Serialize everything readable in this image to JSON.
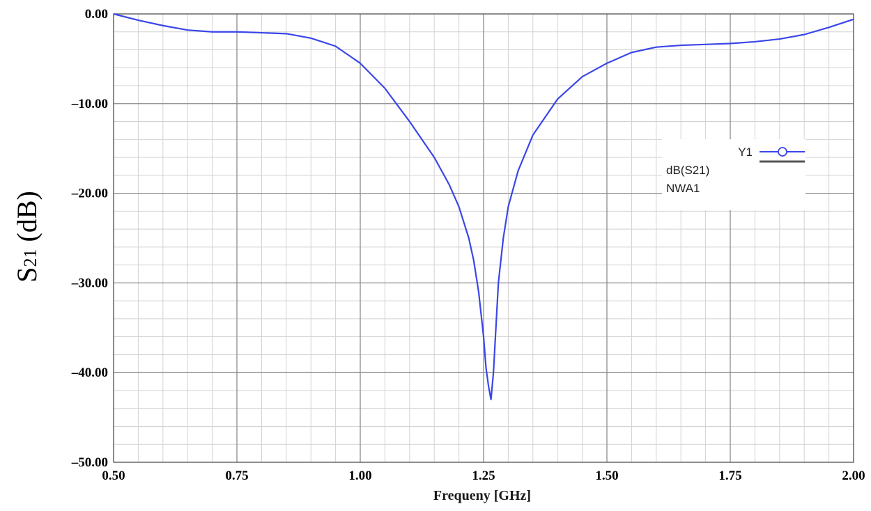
{
  "chart_data": {
    "type": "line",
    "title": "",
    "xlabel": "Frequeny [GHz]",
    "ylabel": {
      "main": "S",
      "sub": "21",
      "unit": " (dB)"
    },
    "xlim": [
      0.5,
      2.0
    ],
    "ylim": [
      -50,
      0
    ],
    "x_ticks": [
      0.5,
      0.75,
      1.0,
      1.25,
      1.5,
      1.75,
      2.0
    ],
    "x_tick_labels": [
      "0.50",
      "0.75",
      "1.00",
      "1.25",
      "1.50",
      "1.75",
      "2.00"
    ],
    "y_ticks": [
      0,
      -10,
      -20,
      -30,
      -40,
      -50
    ],
    "y_tick_labels": [
      "0.00",
      "–10.00",
      "–20.00",
      "–30.00",
      "–40.00",
      "–50.00"
    ],
    "grid": true,
    "legend": {
      "placement": "right",
      "series_label": "Y1",
      "entries": [
        "dB(S21)",
        "NWA1"
      ]
    },
    "series": [
      {
        "color": "#3a46e8",
        "x": [
          0.5,
          0.55,
          0.6,
          0.65,
          0.7,
          0.75,
          0.8,
          0.85,
          0.9,
          0.95,
          1.0,
          1.05,
          1.1,
          1.15,
          1.18,
          1.2,
          1.22,
          1.23,
          1.24,
          1.25,
          1.255,
          1.26,
          1.265,
          1.27,
          1.275,
          1.28,
          1.29,
          1.3,
          1.32,
          1.35,
          1.4,
          1.45,
          1.5,
          1.55,
          1.6,
          1.65,
          1.7,
          1.75,
          1.8,
          1.85,
          1.9,
          1.95,
          2.0
        ],
        "y": [
          0.0,
          -0.7,
          -1.3,
          -1.8,
          -2.0,
          -2.0,
          -2.1,
          -2.2,
          -2.7,
          -3.6,
          -5.5,
          -8.3,
          -12.0,
          -16.0,
          -19.0,
          -21.5,
          -25.0,
          -27.5,
          -31.0,
          -36.0,
          -39.5,
          -41.5,
          -43.0,
          -40.0,
          -35.0,
          -30.0,
          -25.0,
          -21.5,
          -17.5,
          -13.5,
          -9.5,
          -7.0,
          -5.5,
          -4.3,
          -3.7,
          -3.5,
          -3.4,
          -3.3,
          -3.1,
          -2.8,
          -2.3,
          -1.5,
          -0.6
        ]
      }
    ]
  }
}
